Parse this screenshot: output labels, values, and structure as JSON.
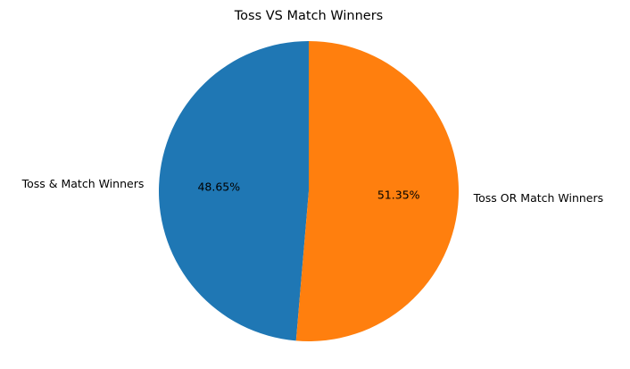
{
  "chart_data": {
    "type": "pie",
    "title": "Toss VS Match Winners",
    "slices": [
      {
        "label": "Toss & Match Winners",
        "value": 48.65,
        "pct_label": "48.65%",
        "color": "#1f77b4"
      },
      {
        "label": "Toss OR Match Winners",
        "value": 51.35,
        "pct_label": "51.35%",
        "color": "#ff7f0e"
      }
    ],
    "start_angle": "top (90°)",
    "direction": "counterclockwise",
    "legend": "none"
  }
}
